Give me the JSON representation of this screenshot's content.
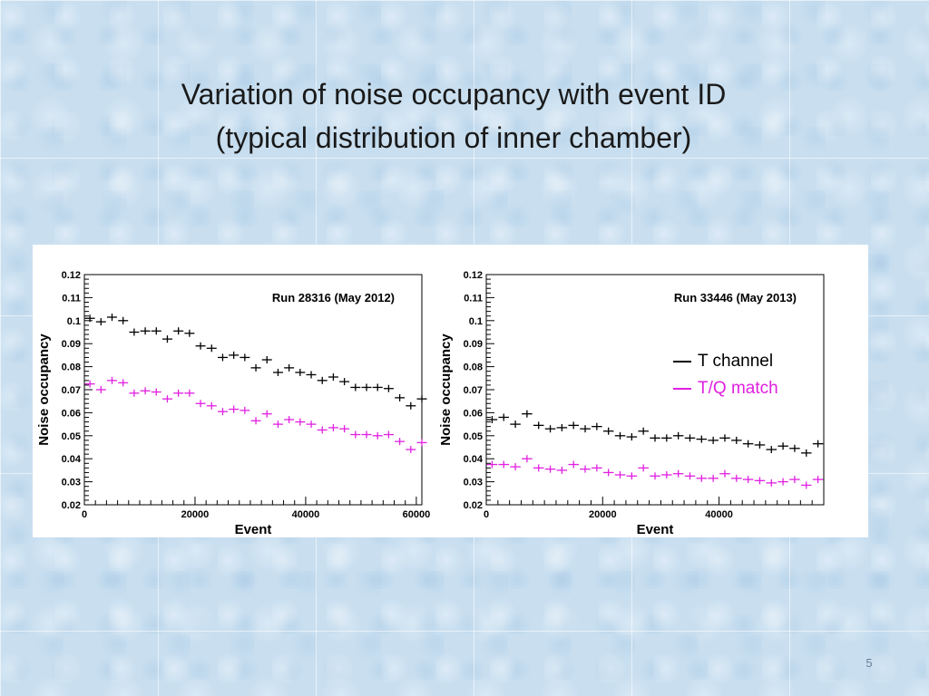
{
  "slide": {
    "title_line1": "Variation of noise occupancy with event ID",
    "title_line2": "(typical distribution of inner chamber)",
    "page_number": "5"
  },
  "legend": {
    "items": [
      {
        "label": "T channel",
        "color": "#000000"
      },
      {
        "label": "T/Q match",
        "color": "#e020e0"
      }
    ]
  },
  "chart_data": [
    {
      "type": "scatter",
      "title": "Run 28316 (May 2012)",
      "xlabel": "Event",
      "ylabel": "Noise occupancy",
      "xlim": [
        0,
        61000
      ],
      "ylim": [
        0.02,
        0.12
      ],
      "xticks": [
        0,
        20000,
        40000,
        60000
      ],
      "yticks": [
        0.02,
        0.03,
        0.04,
        0.05,
        0.06,
        0.07,
        0.08,
        0.09,
        0.1,
        0.11,
        0.12
      ],
      "series": [
        {
          "name": "T channel",
          "color": "#000000",
          "x": [
            1000,
            3000,
            5000,
            7000,
            9000,
            11000,
            13000,
            15000,
            17000,
            19000,
            21000,
            23000,
            25000,
            27000,
            29000,
            31000,
            33000,
            35000,
            37000,
            39000,
            41000,
            43000,
            45000,
            47000,
            49000,
            51000,
            53000,
            55000,
            57000,
            59000,
            61000
          ],
          "y": [
            0.101,
            0.0995,
            0.1015,
            0.1,
            0.095,
            0.0955,
            0.0955,
            0.092,
            0.0955,
            0.0945,
            0.089,
            0.088,
            0.084,
            0.085,
            0.084,
            0.0795,
            0.083,
            0.0775,
            0.0795,
            0.0775,
            0.0765,
            0.074,
            0.0755,
            0.0735,
            0.071,
            0.071,
            0.071,
            0.0705,
            0.0665,
            0.063,
            0.066
          ]
        },
        {
          "name": "T/Q match",
          "color": "#e020e0",
          "x": [
            1000,
            3000,
            5000,
            7000,
            9000,
            11000,
            13000,
            15000,
            17000,
            19000,
            21000,
            23000,
            25000,
            27000,
            29000,
            31000,
            33000,
            35000,
            37000,
            39000,
            41000,
            43000,
            45000,
            47000,
            49000,
            51000,
            53000,
            55000,
            57000,
            59000,
            61000
          ],
          "y": [
            0.0725,
            0.07,
            0.074,
            0.073,
            0.0685,
            0.0695,
            0.069,
            0.066,
            0.0685,
            0.0685,
            0.064,
            0.063,
            0.0605,
            0.0615,
            0.061,
            0.0565,
            0.0595,
            0.055,
            0.057,
            0.056,
            0.055,
            0.0525,
            0.0535,
            0.053,
            0.0505,
            0.0505,
            0.05,
            0.0505,
            0.0475,
            0.044,
            0.047
          ]
        }
      ]
    },
    {
      "type": "scatter",
      "title": "Run 33446 (May 2013)",
      "xlabel": "Event",
      "ylabel": "Noise occupancy",
      "xlim": [
        0,
        58000
      ],
      "ylim": [
        0.02,
        0.12
      ],
      "xticks": [
        0,
        20000,
        40000
      ],
      "yticks": [
        0.02,
        0.03,
        0.04,
        0.05,
        0.06,
        0.07,
        0.08,
        0.09,
        0.1,
        0.11,
        0.12
      ],
      "series": [
        {
          "name": "T channel",
          "color": "#000000",
          "x": [
            1000,
            3000,
            5000,
            7000,
            9000,
            11000,
            13000,
            15000,
            17000,
            19000,
            21000,
            23000,
            25000,
            27000,
            29000,
            31000,
            33000,
            35000,
            37000,
            39000,
            41000,
            43000,
            45000,
            47000,
            49000,
            51000,
            53000,
            55000,
            57000
          ],
          "y": [
            0.057,
            0.058,
            0.055,
            0.0595,
            0.0545,
            0.053,
            0.0535,
            0.0545,
            0.053,
            0.054,
            0.052,
            0.05,
            0.0495,
            0.052,
            0.049,
            0.049,
            0.05,
            0.049,
            0.0485,
            0.048,
            0.049,
            0.048,
            0.0465,
            0.046,
            0.044,
            0.0455,
            0.0445,
            0.0425,
            0.0465
          ]
        },
        {
          "name": "T/Q match",
          "color": "#e020e0",
          "x": [
            1000,
            3000,
            5000,
            7000,
            9000,
            11000,
            13000,
            15000,
            17000,
            19000,
            21000,
            23000,
            25000,
            27000,
            29000,
            31000,
            33000,
            35000,
            37000,
            39000,
            41000,
            43000,
            45000,
            47000,
            49000,
            51000,
            53000,
            55000,
            57000
          ],
          "y": [
            0.0375,
            0.0375,
            0.0365,
            0.04,
            0.036,
            0.0355,
            0.035,
            0.0375,
            0.0355,
            0.036,
            0.034,
            0.033,
            0.0325,
            0.036,
            0.0325,
            0.033,
            0.0335,
            0.0325,
            0.0315,
            0.0315,
            0.0335,
            0.0315,
            0.031,
            0.0305,
            0.0295,
            0.03,
            0.031,
            0.0285,
            0.031
          ]
        }
      ]
    }
  ]
}
